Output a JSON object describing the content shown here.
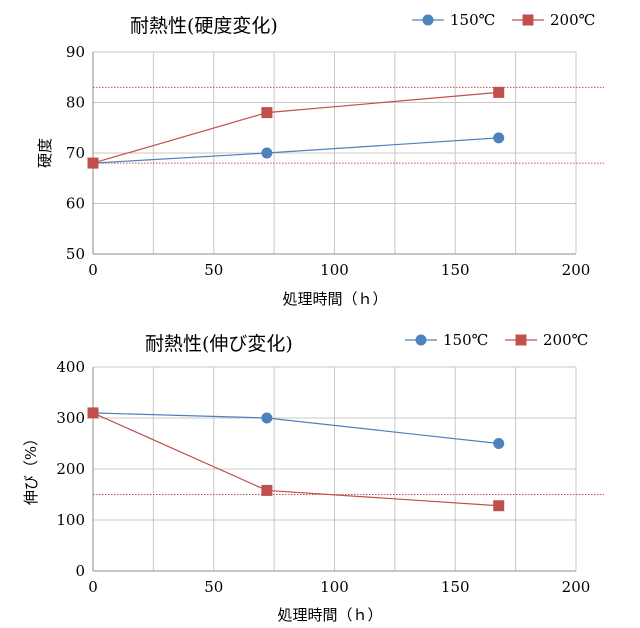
{
  "chart_data": [
    {
      "type": "line",
      "title": "耐熱性(硬度変化)",
      "xlabel": "処理時間（ｈ）",
      "ylabel": "硬度",
      "xlim": [
        0,
        200
      ],
      "ylim": [
        50,
        90
      ],
      "xticks": [
        0,
        50,
        100,
        150,
        200
      ],
      "yticks": [
        50,
        60,
        70,
        80,
        90
      ],
      "grid": true,
      "legend_position": "top-right",
      "series": [
        {
          "name": "150℃",
          "color": "#4f81bd",
          "marker": "circle",
          "x": [
            0,
            72,
            168
          ],
          "y": [
            68,
            70,
            73
          ]
        },
        {
          "name": "200℃",
          "color": "#c0504d",
          "marker": "square",
          "x": [
            0,
            72,
            168
          ],
          "y": [
            68,
            78,
            82
          ]
        }
      ],
      "reference_lines": [
        {
          "y": 83,
          "color": "#c0504d",
          "style": "dotted"
        },
        {
          "y": 68,
          "color": "#c0504d",
          "style": "dotted"
        }
      ]
    },
    {
      "type": "line",
      "title": "耐熱性(伸び変化)",
      "xlabel": "処理時間（ｈ）",
      "ylabel": "伸び（%）",
      "xlim": [
        0,
        200
      ],
      "ylim": [
        0,
        400
      ],
      "xticks": [
        0,
        50,
        100,
        150,
        200
      ],
      "yticks": [
        0,
        100,
        200,
        300,
        400
      ],
      "grid": true,
      "legend_position": "top-right",
      "series": [
        {
          "name": "150℃",
          "color": "#4f81bd",
          "marker": "circle",
          "x": [
            0,
            72,
            168
          ],
          "y": [
            310,
            300,
            250
          ]
        },
        {
          "name": "200℃",
          "color": "#c0504d",
          "marker": "square",
          "x": [
            0,
            72,
            168
          ],
          "y": [
            310,
            158,
            128
          ]
        }
      ],
      "reference_lines": [
        {
          "y": 150,
          "color": "#c0504d",
          "style": "dotted"
        }
      ]
    }
  ]
}
